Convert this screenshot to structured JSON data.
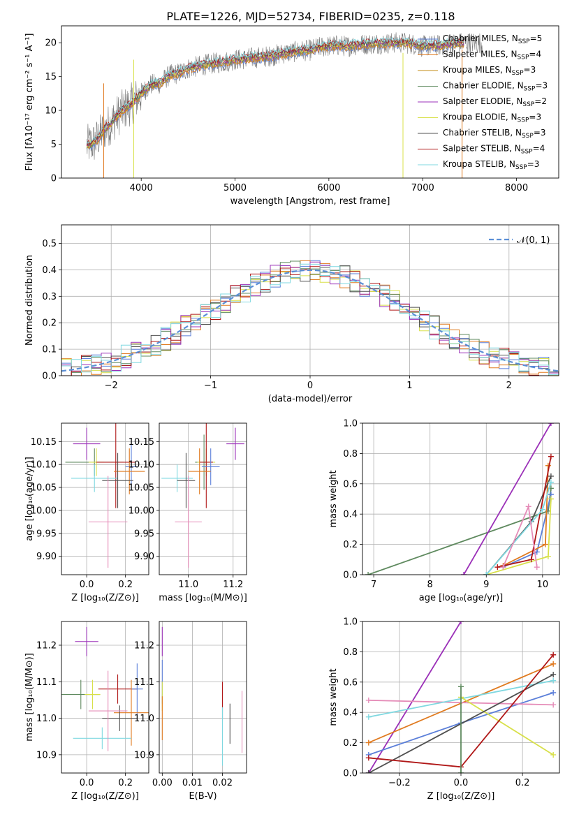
{
  "colors": {
    "miles_chabrier": "#5b7fd9",
    "miles_salpeter": "#e07a1f",
    "miles_kroupa": "#c38b14",
    "elodie_chabrier": "#5f8a5f",
    "elodie_salpeter": "#9b30b8",
    "elodie_kroupa": "#d8e04a",
    "stelib_chabrier": "#505050",
    "stelib_salpeter": "#b01818",
    "stelib_kroupa": "#7fd8e0",
    "extra_pink": "#e58cb8",
    "normal_curve": "#5b8fd6"
  },
  "chart_data": [
    {
      "id": "spectrum",
      "type": "line",
      "title": "PLATE=1226, MJD=52734, FIBERID=0235, z=0.118",
      "xlabel": "wavelength [Angstrom, rest frame]",
      "ylabel": "Flux [fλ10⁻¹⁷ erg cm⁻² s⁻¹ A⁻¹]",
      "xlim": [
        3150,
        8450
      ],
      "ylim": [
        0,
        22.5
      ],
      "xticks": [
        4000,
        5000,
        6000,
        7000,
        8000
      ],
      "yticks": [
        0,
        5,
        10,
        15,
        20
      ],
      "grid": false,
      "legend_position": "right",
      "x": [
        3420,
        3500,
        3600,
        3700,
        3800,
        3900,
        4000,
        4100,
        4200,
        4300,
        4400,
        4500,
        4600,
        4700,
        4800,
        4900,
        5000,
        5100,
        5200,
        5300,
        5400,
        5500,
        5600,
        5700,
        5800,
        5900,
        6000,
        6100,
        6200,
        6300,
        6400,
        6500,
        6600,
        6700,
        6800,
        6900,
        7000,
        7100,
        7200,
        7300,
        7400
      ],
      "model_flux": [
        4.8,
        5.2,
        7.0,
        8.5,
        10.0,
        11.0,
        12.5,
        13.8,
        14.0,
        15.2,
        15.5,
        16.2,
        16.5,
        16.8,
        17.0,
        17.2,
        17.5,
        17.6,
        17.8,
        17.9,
        18.1,
        18.4,
        18.6,
        18.8,
        18.9,
        19.3,
        19.5,
        19.6,
        19.5,
        19.7,
        19.8,
        19.9,
        19.9,
        20.0,
        20.0,
        19.8,
        19.5,
        19.6,
        19.6,
        19.8,
        20.0
      ],
      "series": [
        {
          "name": "Chabrier MILES, N_SSP=5",
          "color": "#5b7fd9"
        },
        {
          "name": "Salpeter MILES, N_SSP=4",
          "color": "#e07a1f"
        },
        {
          "name": "Kroupa MILES, N_SSP=3",
          "color": "#c38b14"
        },
        {
          "name": "Chabrier ELODIE, N_SSP=3",
          "color": "#5f8a5f"
        },
        {
          "name": "Salpeter ELODIE, N_SSP=2",
          "color": "#9b30b8"
        },
        {
          "name": "Kroupa ELODIE, N_SSP=3",
          "color": "#d8e04a"
        },
        {
          "name": "Chabrier STELIB, N_SSP=3",
          "color": "#505050"
        },
        {
          "name": "Salpeter STELIB, N_SSP=4",
          "color": "#b01818"
        },
        {
          "name": "Kroupa STELIB, N_SSP=3",
          "color": "#7fd8e0"
        }
      ]
    },
    {
      "id": "residuals",
      "type": "line",
      "xlabel": "(data-model)/error",
      "ylabel": "Normed distribution",
      "xlim": [
        -2.5,
        2.5
      ],
      "ylim": [
        0,
        0.57
      ],
      "xticks": [
        -2,
        -1,
        0,
        1,
        2
      ],
      "yticks": [
        0.0,
        0.1,
        0.2,
        0.3,
        0.4,
        0.5
      ],
      "grid": true,
      "legend_position": "top-right",
      "normal_label": "𝒩(0, 1)",
      "bin_width": 0.1,
      "bin_start": -2.5
    },
    {
      "id": "age_vs_Z",
      "type": "scatter",
      "xlabel": "Z [log₁₀(Z/Z⊙)]",
      "ylabel": "age  [log₁₀(age/yr)]",
      "xlim": [
        -0.13,
        0.32
      ],
      "ylim": [
        9.86,
        10.19
      ],
      "xticks": [
        0.0,
        0.2
      ],
      "yticks": [
        9.9,
        9.95,
        10.0,
        10.05,
        10.1,
        10.15
      ],
      "grid": true,
      "points": [
        {
          "x": 0.0,
          "y": 10.145,
          "xerr": 0.07,
          "yerr": 0.035,
          "color": "#9b30b8"
        },
        {
          "x": 0.04,
          "y": 10.105,
          "xerr": 0.15,
          "yerr": 0.03,
          "color": "#5f8a5f"
        },
        {
          "x": 0.05,
          "y": 10.105,
          "xerr": 0.04,
          "yerr": 0.03,
          "color": "#d8e04a"
        },
        {
          "x": 0.15,
          "y": 10.105,
          "xerr": 0.1,
          "yerr": 0.1,
          "color": "#b01818"
        },
        {
          "x": 0.23,
          "y": 10.095,
          "xerr": 0.03,
          "yerr": 0.05,
          "color": "#5b7fd9"
        },
        {
          "x": 0.22,
          "y": 10.085,
          "xerr": 0.08,
          "yerr": 0.05,
          "color": "#e07a1f"
        },
        {
          "x": 0.04,
          "y": 10.07,
          "xerr": 0.12,
          "yerr": 0.03,
          "color": "#7fd8e0"
        },
        {
          "x": 0.16,
          "y": 10.065,
          "xerr": 0.08,
          "yerr": 0.06,
          "color": "#505050"
        },
        {
          "x": 0.11,
          "y": 9.975,
          "xerr": 0.1,
          "yerr": 0.1,
          "color": "#e58cb8"
        }
      ]
    },
    {
      "id": "age_vs_mass",
      "type": "scatter",
      "xlabel": "mass [log₁₀(M/M⊙)]",
      "ylabel": "",
      "xlim": [
        10.87,
        11.26
      ],
      "ylim": [
        9.86,
        10.19
      ],
      "xticks": [
        11.0,
        11.2
      ],
      "yticks": [
        9.9,
        9.95,
        10.0,
        10.05,
        10.1,
        10.15
      ],
      "grid": true,
      "points": [
        {
          "x": 11.21,
          "y": 10.145,
          "xerr": 0.04,
          "yerr": 0.035,
          "color": "#9b30b8"
        },
        {
          "x": 11.07,
          "y": 10.105,
          "xerr": 0.04,
          "yerr": 0.06,
          "color": "#5f8a5f"
        },
        {
          "x": 11.08,
          "y": 10.105,
          "xerr": 0.04,
          "yerr": 0.03,
          "color": "#d8e04a"
        },
        {
          "x": 11.08,
          "y": 10.105,
          "xerr": 0.03,
          "yerr": 0.1,
          "color": "#b01818"
        },
        {
          "x": 11.1,
          "y": 10.095,
          "xerr": 0.04,
          "yerr": 0.04,
          "color": "#5b7fd9"
        },
        {
          "x": 11.05,
          "y": 10.085,
          "xerr": 0.05,
          "yerr": 0.05,
          "color": "#e07a1f"
        },
        {
          "x": 10.95,
          "y": 10.07,
          "xerr": 0.07,
          "yerr": 0.03,
          "color": "#7fd8e0"
        },
        {
          "x": 10.99,
          "y": 10.065,
          "xerr": 0.04,
          "yerr": 0.06,
          "color": "#505050"
        },
        {
          "x": 11.0,
          "y": 9.975,
          "xerr": 0.06,
          "yerr": 0.1,
          "color": "#e58cb8"
        }
      ]
    },
    {
      "id": "weight_vs_age",
      "type": "line",
      "xlabel": "age  [log₁₀(age/yr)]",
      "ylabel": "mass weight",
      "xlim": [
        6.8,
        10.3
      ],
      "ylim": [
        0,
        1
      ],
      "xticks": [
        7,
        8,
        9,
        10
      ],
      "yticks": [
        0.0,
        0.2,
        0.4,
        0.6,
        0.8,
        1.0
      ],
      "grid": true,
      "series": [
        {
          "color": "#5f8a5f",
          "x": [
            6.9,
            10.1,
            10.15
          ],
          "y": [
            0.0,
            0.42,
            0.57
          ]
        },
        {
          "color": "#9b30b8",
          "x": [
            8.6,
            10.15
          ],
          "y": [
            0.0,
            1.0
          ]
        },
        {
          "color": "#5b7fd9",
          "x": [
            9.3,
            9.9,
            10.15
          ],
          "y": [
            0.05,
            0.15,
            0.53
          ]
        },
        {
          "color": "#e07a1f",
          "x": [
            9.3,
            10.05,
            10.1
          ],
          "y": [
            0.06,
            0.2,
            0.72
          ]
        },
        {
          "color": "#d8e04a",
          "x": [
            9.0,
            10.1,
            10.15
          ],
          "y": [
            0.0,
            0.12,
            0.5
          ]
        },
        {
          "color": "#505050",
          "x": [
            9.0,
            9.8,
            10.15
          ],
          "y": [
            0.0,
            0.35,
            0.65
          ]
        },
        {
          "color": "#b01818",
          "x": [
            9.2,
            9.8,
            10.15
          ],
          "y": [
            0.05,
            0.1,
            0.78
          ]
        },
        {
          "color": "#7fd8e0",
          "x": [
            9.0,
            10.0,
            10.15
          ],
          "y": [
            0.0,
            0.43,
            0.61
          ]
        },
        {
          "color": "#e58cb8",
          "x": [
            9.3,
            9.75,
            9.9
          ],
          "y": [
            0.05,
            0.45,
            0.05
          ]
        }
      ]
    },
    {
      "id": "mass_vs_Z",
      "type": "scatter",
      "xlabel": "Z [log₁₀(Z/Z⊙)]",
      "ylabel": "mass [log₁₀(M/M⊙)]",
      "xlim": [
        -0.13,
        0.32
      ],
      "ylim": [
        10.85,
        11.265
      ],
      "xticks": [
        0.0,
        0.2
      ],
      "yticks": [
        10.9,
        11.0,
        11.1,
        11.2
      ],
      "grid": true,
      "points": [
        {
          "x": 0.0,
          "y": 11.21,
          "xerr": 0.06,
          "yerr": 0.04,
          "color": "#9b30b8"
        },
        {
          "x": -0.03,
          "y": 11.065,
          "xerr": 0.1,
          "yerr": 0.04,
          "color": "#5f8a5f"
        },
        {
          "x": 0.03,
          "y": 11.065,
          "xerr": 0.04,
          "yerr": 0.04,
          "color": "#d8e04a"
        },
        {
          "x": 0.16,
          "y": 11.08,
          "xerr": 0.1,
          "yerr": 0.04,
          "color": "#b01818"
        },
        {
          "x": 0.26,
          "y": 11.08,
          "xerr": 0.03,
          "yerr": 0.07,
          "color": "#5b7fd9"
        },
        {
          "x": 0.23,
          "y": 11.015,
          "xerr": 0.09,
          "yerr": 0.09,
          "color": "#e07a1f"
        },
        {
          "x": 0.08,
          "y": 10.945,
          "xerr": 0.15,
          "yerr": 0.03,
          "color": "#7fd8e0"
        },
        {
          "x": 0.17,
          "y": 11.0,
          "xerr": 0.09,
          "yerr": 0.035,
          "color": "#505050"
        },
        {
          "x": 0.11,
          "y": 11.02,
          "xerr": 0.1,
          "yerr": 0.11,
          "color": "#e58cb8"
        }
      ]
    },
    {
      "id": "mass_vs_ebv",
      "type": "scatter",
      "xlabel": "E(B-V)",
      "ylabel": "",
      "xlim": [
        -0.001,
        0.028
      ],
      "ylim": [
        10.85,
        11.265
      ],
      "xticks": [
        0.0,
        0.01,
        0.02
      ],
      "yticks": [
        10.9,
        11.0,
        11.1,
        11.2
      ],
      "grid": true,
      "points": [
        {
          "x": 0.0,
          "y": 11.21,
          "xerr": 0.0,
          "yerr": 0.04,
          "color": "#9b30b8"
        },
        {
          "x": 0.0,
          "y": 11.1,
          "xerr": 0.0,
          "yerr": 0.06,
          "color": "#5b7fd9"
        },
        {
          "x": 0.0,
          "y": 11.06,
          "xerr": 0.0,
          "yerr": 0.04,
          "color": "#d8e04a"
        },
        {
          "x": 0.0,
          "y": 11.0,
          "xerr": 0.0,
          "yerr": 0.06,
          "color": "#e07a1f"
        },
        {
          "x": 0.02,
          "y": 11.05,
          "xerr": 0.0,
          "yerr": 0.05,
          "color": "#b01818"
        },
        {
          "x": 0.02,
          "y": 10.95,
          "xerr": 0.0,
          "yerr": 0.08,
          "color": "#7fd8e0"
        },
        {
          "x": 0.0225,
          "y": 10.985,
          "xerr": 0.0,
          "yerr": 0.055,
          "color": "#505050"
        },
        {
          "x": 0.0265,
          "y": 10.99,
          "xerr": 0.0,
          "yerr": 0.085,
          "color": "#e58cb8"
        }
      ]
    },
    {
      "id": "weight_vs_Z",
      "type": "line",
      "xlabel": "Z [log₁₀(Z/Z⊙)]",
      "ylabel": "mass weight",
      "xlim": [
        -0.32,
        0.32
      ],
      "ylim": [
        0,
        1
      ],
      "xticks": [
        -0.2,
        0.0,
        0.2
      ],
      "yticks": [
        0.0,
        0.2,
        0.4,
        0.6,
        0.8,
        1.0
      ],
      "grid": true,
      "series": [
        {
          "color": "#9b30b8",
          "x": [
            -0.3,
            0.0
          ],
          "y": [
            0.0,
            1.0
          ]
        },
        {
          "color": "#5b7fd9",
          "x": [
            -0.3,
            0.0,
            0.3
          ],
          "y": [
            0.12,
            0.33,
            0.53
          ]
        },
        {
          "color": "#e07a1f",
          "x": [
            -0.3,
            0.3
          ],
          "y": [
            0.2,
            0.72
          ]
        },
        {
          "color": "#e58cb8",
          "x": [
            -0.3,
            0.3
          ],
          "y": [
            0.48,
            0.45
          ]
        },
        {
          "color": "#7fd8e0",
          "x": [
            -0.3,
            0.3
          ],
          "y": [
            0.37,
            0.61
          ]
        },
        {
          "color": "#d8e04a",
          "x": [
            0.0,
            0.3
          ],
          "y": [
            0.5,
            0.12
          ]
        },
        {
          "color": "#505050",
          "x": [
            -0.3,
            0.3
          ],
          "y": [
            0.0,
            0.65
          ]
        },
        {
          "color": "#b01818",
          "x": [
            -0.3,
            0.0,
            0.3
          ],
          "y": [
            0.1,
            0.04,
            0.78
          ]
        },
        {
          "color": "#5f8a5f",
          "x": [
            0.0,
            0.0
          ],
          "y": [
            0.0,
            0.57
          ]
        }
      ]
    }
  ]
}
